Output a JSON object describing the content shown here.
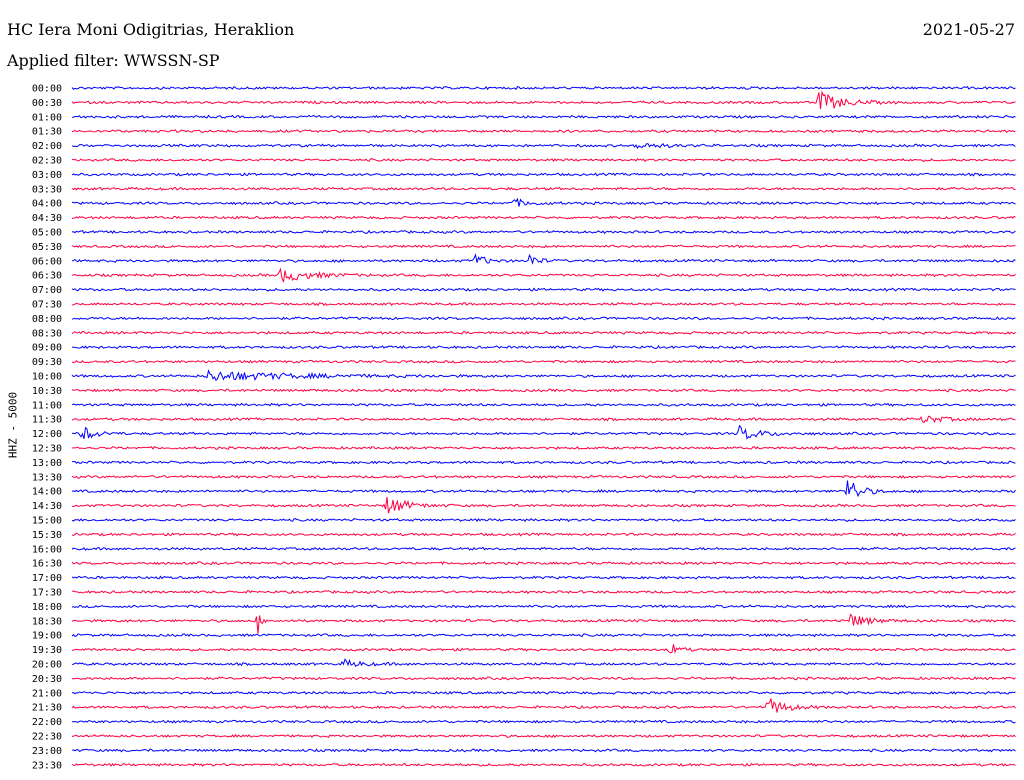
{
  "header": {
    "station": "HC Iera Moni Odigitrias, Heraklion",
    "date": "2021-05-27",
    "filter": "Applied filter: WWSSN-SP"
  },
  "channel_label": "HHZ - 5000",
  "colors": {
    "even_row": "#0000ff",
    "odd_row": "#ff0040"
  },
  "chart_data": {
    "type": "helicorder",
    "title": "HC Iera Moni Odigitrias, Heraklion",
    "date": "2021-05-27",
    "filter": "WWSSN-SP",
    "ylabel": "HHZ - 5000",
    "rows": [
      "00:00",
      "00:30",
      "01:00",
      "01:30",
      "02:00",
      "02:30",
      "03:00",
      "03:30",
      "04:00",
      "04:30",
      "05:00",
      "05:30",
      "06:00",
      "06:30",
      "07:00",
      "07:30",
      "08:00",
      "08:30",
      "09:00",
      "09:30",
      "10:00",
      "10:30",
      "11:00",
      "11:30",
      "12:00",
      "12:30",
      "13:00",
      "13:30",
      "14:00",
      "14:30",
      "15:00",
      "15:30",
      "16:00",
      "16:30",
      "17:00",
      "17:30",
      "18:00",
      "18:30",
      "19:00",
      "19:30",
      "20:00",
      "20:30",
      "21:00",
      "21:30",
      "22:00",
      "22:30",
      "23:00",
      "23:30"
    ],
    "row_minutes": 30,
    "events": [
      {
        "row": "00:30",
        "minute": 23.7,
        "amplitude": 12,
        "duration_min": 1.0
      },
      {
        "row": "02:00",
        "minute": 17.9,
        "amplitude": 3,
        "duration_min": 1.2
      },
      {
        "row": "04:00",
        "minute": 14.0,
        "amplitude": 4,
        "duration_min": 0.8
      },
      {
        "row": "06:00",
        "minute": 12.8,
        "amplitude": 7,
        "duration_min": 0.5
      },
      {
        "row": "06:00",
        "minute": 14.5,
        "amplitude": 8,
        "duration_min": 0.4
      },
      {
        "row": "06:30",
        "minute": 6.6,
        "amplitude": 7,
        "duration_min": 1.4
      },
      {
        "row": "10:00",
        "minute": 4.3,
        "amplitude": 5,
        "duration_min": 4.0
      },
      {
        "row": "11:30",
        "minute": 27.0,
        "amplitude": 4,
        "duration_min": 1.0
      },
      {
        "row": "12:00",
        "minute": 0.3,
        "amplitude": 9,
        "duration_min": 0.6
      },
      {
        "row": "12:00",
        "minute": 21.2,
        "amplitude": 7,
        "duration_min": 1.0
      },
      {
        "row": "14:00",
        "minute": 24.6,
        "amplitude": 16,
        "duration_min": 0.6
      },
      {
        "row": "14:30",
        "minute": 10.0,
        "amplitude": 10,
        "duration_min": 0.9
      },
      {
        "row": "18:30",
        "minute": 5.9,
        "amplitude": 16,
        "duration_min": 0.1
      },
      {
        "row": "18:30",
        "minute": 24.7,
        "amplitude": 7,
        "duration_min": 0.9
      },
      {
        "row": "19:30",
        "minute": 19.0,
        "amplitude": 7,
        "duration_min": 0.4
      },
      {
        "row": "20:00",
        "minute": 8.6,
        "amplitude": 4,
        "duration_min": 0.9
      },
      {
        "row": "21:30",
        "minute": 22.1,
        "amplitude": 10,
        "duration_min": 0.8
      }
    ]
  }
}
